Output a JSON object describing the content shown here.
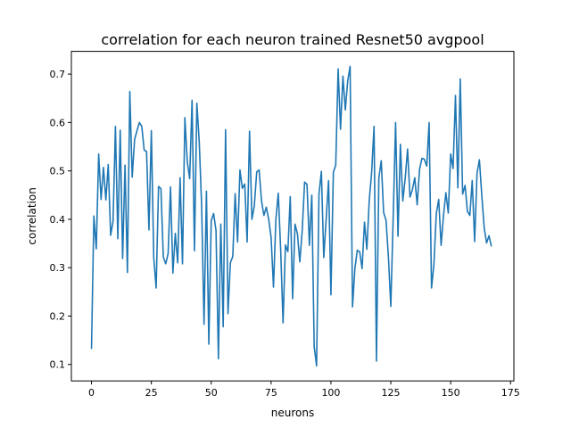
{
  "chart_data": {
    "type": "line",
    "title": "correlation for each neuron trained Resnet50 avgpool",
    "xlabel": "neurons",
    "ylabel": "correlation",
    "xlim": [
      -8.4,
      176.4
    ],
    "ylim": [
      0.066,
      0.747
    ],
    "xticks": [
      0,
      25,
      50,
      75,
      100,
      125,
      150,
      175
    ],
    "yticks": [
      0.1,
      0.2,
      0.3,
      0.4,
      0.5,
      0.6,
      0.7
    ],
    "xtick_labels": [
      "0",
      "25",
      "50",
      "75",
      "100",
      "125",
      "150",
      "175"
    ],
    "ytick_labels": [
      "0.1",
      "0.2",
      "0.3",
      "0.4",
      "0.5",
      "0.6",
      "0.7"
    ],
    "grid": false,
    "series": [
      {
        "color": "#1f77b4",
        "x_start": 0,
        "values": [
          0.132,
          0.407,
          0.339,
          0.535,
          0.441,
          0.507,
          0.44,
          0.513,
          0.367,
          0.396,
          0.592,
          0.36,
          0.584,
          0.319,
          0.512,
          0.29,
          0.664,
          0.487,
          0.565,
          0.583,
          0.6,
          0.592,
          0.543,
          0.54,
          0.378,
          0.583,
          0.321,
          0.258,
          0.468,
          0.463,
          0.322,
          0.308,
          0.329,
          0.467,
          0.289,
          0.371,
          0.31,
          0.486,
          0.308,
          0.61,
          0.519,
          0.484,
          0.646,
          0.335,
          0.64,
          0.56,
          0.428,
          0.183,
          0.458,
          0.142,
          0.397,
          0.412,
          0.377,
          0.112,
          0.39,
          0.178,
          0.585,
          0.205,
          0.31,
          0.323,
          0.453,
          0.353,
          0.502,
          0.464,
          0.473,
          0.353,
          0.582,
          0.4,
          0.428,
          0.498,
          0.502,
          0.438,
          0.408,
          0.425,
          0.4,
          0.363,
          0.26,
          0.399,
          0.454,
          0.338,
          0.186,
          0.347,
          0.333,
          0.447,
          0.236,
          0.39,
          0.37,
          0.312,
          0.377,
          0.477,
          0.472,
          0.346,
          0.45,
          0.137,
          0.097,
          0.452,
          0.499,
          0.321,
          0.4,
          0.48,
          0.244,
          0.497,
          0.512,
          0.711,
          0.586,
          0.696,
          0.626,
          0.686,
          0.716,
          0.219,
          0.298,
          0.336,
          0.333,
          0.298,
          0.394,
          0.338,
          0.44,
          0.497,
          0.592,
          0.107,
          0.485,
          0.521,
          0.414,
          0.398,
          0.322,
          0.22,
          0.406,
          0.6,
          0.365,
          0.555,
          0.438,
          0.484,
          0.545,
          0.446,
          0.461,
          0.486,
          0.43,
          0.503,
          0.526,
          0.524,
          0.51,
          0.6,
          0.258,
          0.307,
          0.412,
          0.441,
          0.346,
          0.408,
          0.455,
          0.413,
          0.535,
          0.505,
          0.656,
          0.465,
          0.69,
          0.452,
          0.47,
          0.416,
          0.408,
          0.48,
          0.354,
          0.495,
          0.523,
          0.449,
          0.382,
          0.351,
          0.366,
          0.344
        ]
      }
    ]
  }
}
